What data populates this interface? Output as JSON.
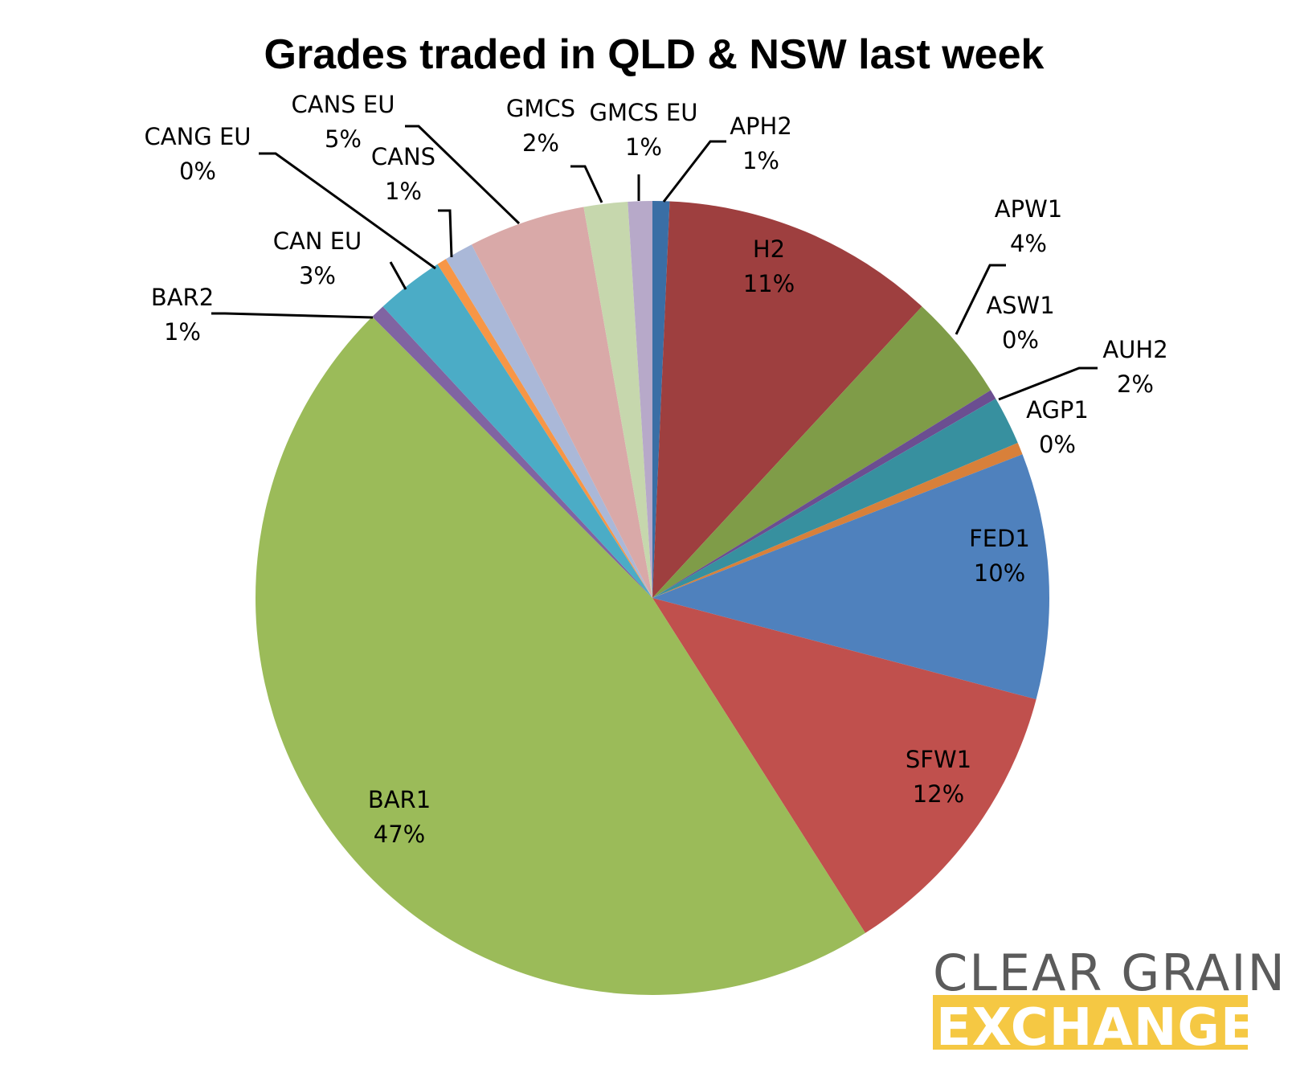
{
  "chart_data": {
    "type": "pie",
    "title": "Grades traded in QLD & NSW last week",
    "slices": [
      {
        "name": "APH2",
        "pct_label": "1%",
        "value": 0.7,
        "color": "#3a6ea5"
      },
      {
        "name": "H2",
        "pct_label": "11%",
        "value": 11.3,
        "color": "#9e3f3f"
      },
      {
        "name": "APW1",
        "pct_label": "4%",
        "value": 4.4,
        "color": "#7f9c48"
      },
      {
        "name": "ASW1",
        "pct_label": "0%",
        "value": 0.4,
        "color": "#6b4e91"
      },
      {
        "name": "AUH2",
        "pct_label": "2%",
        "value": 2.0,
        "color": "#37909f"
      },
      {
        "name": "AGP1",
        "pct_label": "0%",
        "value": 0.5,
        "color": "#d8803a"
      },
      {
        "name": "FED1",
        "pct_label": "10%",
        "value": 10.1,
        "color": "#4f81bd"
      },
      {
        "name": "SFW1",
        "pct_label": "12%",
        "value": 12.0,
        "color": "#c0504d"
      },
      {
        "name": "BAR1",
        "pct_label": "47%",
        "value": 47.0,
        "color": "#9bbb59"
      },
      {
        "name": "BAR2",
        "pct_label": "1%",
        "value": 0.6,
        "color": "#8064a2"
      },
      {
        "name": "CAN EU",
        "pct_label": "3%",
        "value": 2.8,
        "color": "#4bacc6"
      },
      {
        "name": "CANG EU",
        "pct_label": "0%",
        "value": 0.4,
        "color": "#f79646"
      },
      {
        "name": "CANS",
        "pct_label": "1%",
        "value": 1.2,
        "color": "#aab8d8"
      },
      {
        "name": "CANS EU",
        "pct_label": "5%",
        "value": 4.8,
        "color": "#d9a9a8"
      },
      {
        "name": "GMCS",
        "pct_label": "2%",
        "value": 1.8,
        "color": "#c6d7ad"
      },
      {
        "name": "GMCS EU",
        "pct_label": "1%",
        "value": 1.0,
        "color": "#b7a9c9"
      }
    ]
  },
  "logo": {
    "line1": "CLEAR GRAIN",
    "line2": "EXCHANGE",
    "accent_color": "#f5c843",
    "text_color": "#5b5b5b"
  }
}
